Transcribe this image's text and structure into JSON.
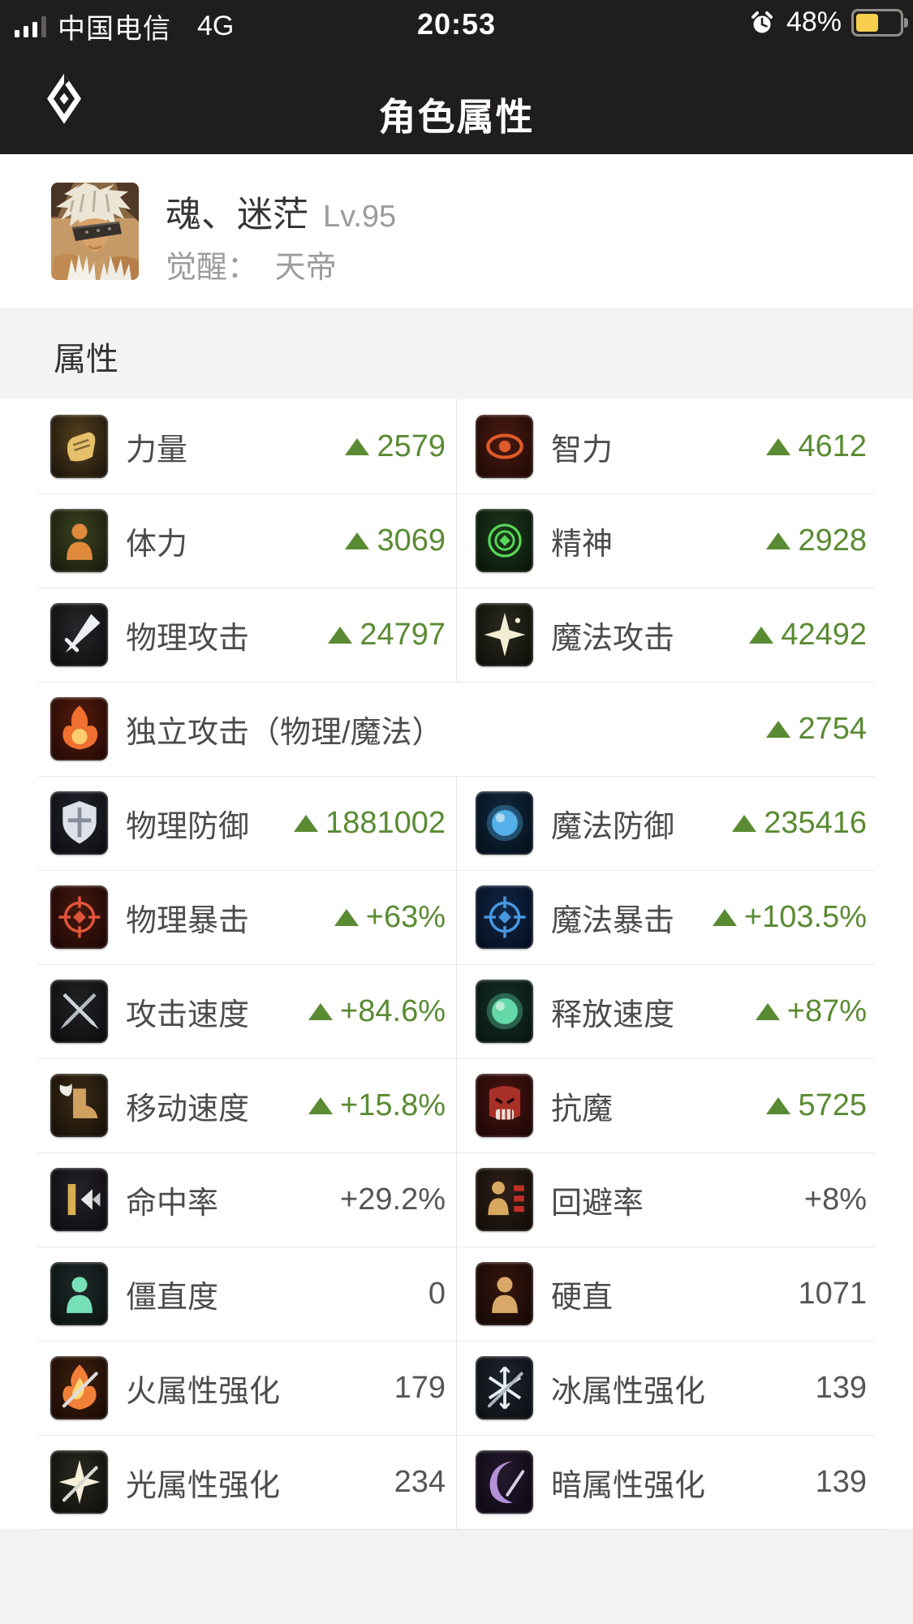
{
  "status_bar": {
    "carrier": "中国电信",
    "network": "4G",
    "time": "20:53",
    "battery_percent": "48%",
    "battery_color": "#f6ce4c",
    "signal_bars": 4,
    "signal_active_bars": 3
  },
  "header": {
    "title": "角色属性"
  },
  "character": {
    "name": "魂、迷茫",
    "level": "Lv.95",
    "awaken_label": "觉醒：",
    "awaken_value": "天帝"
  },
  "section": {
    "title": "属性"
  },
  "colors": {
    "accent_green": "#5a8b33",
    "value_gray": "#55555a",
    "label_gray": "#4c4c4c",
    "appbar_bg": "#1f1d1d",
    "section_bg": "#f3f3f3",
    "divider": "#e8e8e8"
  },
  "stats": {
    "rows": [
      {
        "type": "pair",
        "cells": [
          {
            "icon": "strength-icon",
            "shape": "fist",
            "tile": [
              "#56421f",
              "#16100a"
            ],
            "glyph": "#e6c06a",
            "label": "力量",
            "value": "2579",
            "trend": "up"
          },
          {
            "icon": "intelligence-icon",
            "shape": "eye",
            "tile": [
              "#4a1a10",
              "#1c0906"
            ],
            "glyph": "#e05a2a",
            "label": "智力",
            "value": "4612",
            "trend": "up"
          }
        ]
      },
      {
        "type": "pair",
        "cells": [
          {
            "icon": "vitality-icon",
            "shape": "person",
            "tile": [
              "#3c4420",
              "#14170b"
            ],
            "glyph": "#e08a3c",
            "label": "体力",
            "value": "3069",
            "trend": "up"
          },
          {
            "icon": "spirit-icon",
            "shape": "rings",
            "tile": [
              "#1c3a1c",
              "#091208"
            ],
            "glyph": "#58d858",
            "label": "精神",
            "value": "2928",
            "trend": "up"
          }
        ]
      },
      {
        "type": "pair",
        "cells": [
          {
            "icon": "physical-attack-icon",
            "shape": "sword",
            "tile": [
              "#28282c",
              "#0b0b0d"
            ],
            "glyph": "#eceef2",
            "label": "物理攻击",
            "value": "24797",
            "trend": "up"
          },
          {
            "icon": "magic-attack-icon",
            "shape": "sparkle",
            "tile": [
              "#2a2a20",
              "#0d0d09"
            ],
            "glyph": "#f2ecd2",
            "label": "魔法攻击",
            "value": "42492",
            "trend": "up"
          }
        ]
      },
      {
        "type": "full",
        "cells": [
          {
            "icon": "independent-attack-icon",
            "shape": "flamefist",
            "tile": [
              "#581c0c",
              "#1e0805"
            ],
            "glyph": "#f07030",
            "label": "独立攻击（物理/魔法）",
            "value": "2754",
            "trend": "up"
          }
        ]
      },
      {
        "type": "pair",
        "cells": [
          {
            "icon": "physical-defense-icon",
            "shape": "shield",
            "tile": [
              "#23262e",
              "#0a0b0f"
            ],
            "glyph": "#dde2ea",
            "label": "物理防御",
            "value": "1881002",
            "trend": "up"
          },
          {
            "icon": "magic-defense-icon",
            "shape": "orb",
            "tile": [
              "#102a40",
              "#050d16"
            ],
            "glyph": "#54b0e8",
            "label": "魔法防御",
            "value": "235416",
            "trend": "up"
          }
        ]
      },
      {
        "type": "pair",
        "cells": [
          {
            "icon": "physical-crit-icon",
            "shape": "crosshair",
            "tile": [
              "#46180f",
              "#1a0705"
            ],
            "glyph": "#e05538",
            "label": "物理暴击",
            "value": "+63%",
            "trend": "up"
          },
          {
            "icon": "magic-crit-icon",
            "shape": "crosshair",
            "tile": [
              "#10284a",
              "#050b1a"
            ],
            "glyph": "#4898e0",
            "label": "魔法暴击",
            "value": "+103.5%",
            "trend": "up"
          }
        ]
      },
      {
        "type": "pair",
        "cells": [
          {
            "icon": "attack-speed-icon",
            "shape": "xswords",
            "tile": [
              "#232327",
              "#0a0a0c"
            ],
            "glyph": "#cfd4da",
            "label": "攻击速度",
            "value": "+84.6%",
            "trend": "up"
          },
          {
            "icon": "cast-speed-icon",
            "shape": "orb",
            "tile": [
              "#143228",
              "#07110d"
            ],
            "glyph": "#64d8a8",
            "label": "释放速度",
            "value": "+87%",
            "trend": "up"
          }
        ]
      },
      {
        "type": "pair",
        "cells": [
          {
            "icon": "move-speed-icon",
            "shape": "boot",
            "tile": [
              "#3c2c16",
              "#130d06"
            ],
            "glyph": "#cfa060",
            "label": "移动速度",
            "value": "+15.8%",
            "trend": "up"
          },
          {
            "icon": "magic-resist-icon",
            "shape": "demon",
            "tile": [
              "#4a1410",
              "#1a0606"
            ],
            "glyph": "#a83028",
            "label": "抗魔",
            "value": "5725",
            "trend": "up"
          }
        ]
      },
      {
        "type": "pair",
        "cells": [
          {
            "icon": "hit-rate-icon",
            "shape": "arrowhit",
            "tile": [
              "#26222a",
              "#0c0a0d"
            ],
            "glyph": "#d8b050",
            "label": "命中率",
            "value": "+29.2%",
            "trend": "none"
          },
          {
            "icon": "evasion-icon",
            "shape": "figurebars",
            "tile": [
              "#2e2018",
              "#100b07"
            ],
            "glyph": "#d8a860",
            "label": "回避率",
            "value": "+8%",
            "trend": "none"
          }
        ]
      },
      {
        "type": "pair",
        "cells": [
          {
            "icon": "stiffness-icon",
            "shape": "person",
            "tile": [
              "#1e2a2a",
              "#0a0f0f"
            ],
            "glyph": "#78e0b8",
            "label": "僵直度",
            "value": "0",
            "trend": "none"
          },
          {
            "icon": "super-armor-icon",
            "shape": "person",
            "tile": [
              "#38160e",
              "#130705"
            ],
            "glyph": "#d8a868",
            "label": "硬直",
            "value": "1071",
            "trend": "none"
          }
        ]
      },
      {
        "type": "pair",
        "cells": [
          {
            "icon": "fire-strengthen-icon",
            "shape": "flame",
            "tile": [
              "#40200e",
              "#160904"
            ],
            "glyph": "#f08038",
            "label": "火属性强化",
            "value": "179",
            "trend": "none"
          },
          {
            "icon": "ice-strengthen-icon",
            "shape": "snow",
            "tile": [
              "#20262e",
              "#0b0d11"
            ],
            "glyph": "#e8f0f8",
            "label": "冰属性强化",
            "value": "139",
            "trend": "none"
          }
        ]
      },
      {
        "type": "pair",
        "cells": [
          {
            "icon": "light-strengthen-icon",
            "shape": "lightstar",
            "tile": [
              "#2a2a22",
              "#0d0d09"
            ],
            "glyph": "#f5f0d8",
            "label": "光属性强化",
            "value": "234",
            "trend": "none"
          },
          {
            "icon": "dark-strengthen-icon",
            "shape": "moon",
            "tile": [
              "#241a2e",
              "#0c0711"
            ],
            "glyph": "#b690d8",
            "label": "暗属性强化",
            "value": "139",
            "trend": "none"
          }
        ]
      }
    ]
  }
}
